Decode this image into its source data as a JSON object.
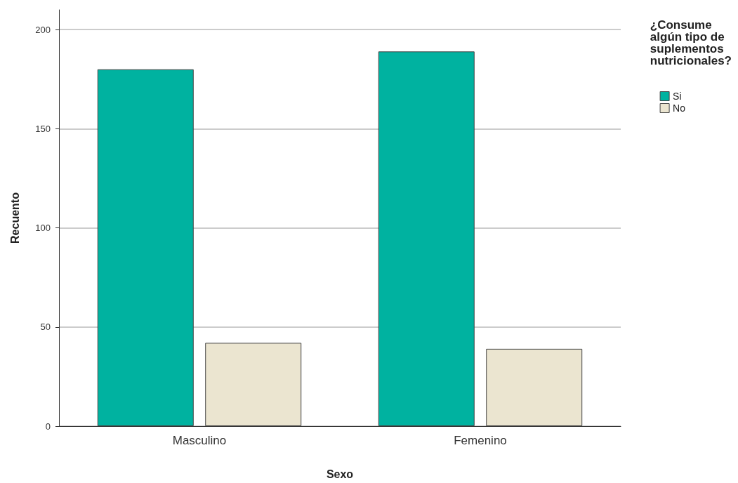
{
  "chart_data": {
    "type": "bar",
    "xlabel": "Sexo",
    "ylabel": "Recuento",
    "legend_title": "¿Consume\nalgún tipo de\nsuplementos\nnutricionales?",
    "categories": [
      "Masculino",
      "Femenino"
    ],
    "series": [
      {
        "name": "Si",
        "color": "#00b2a0",
        "values": [
          180,
          189
        ]
      },
      {
        "name": "No",
        "color": "#ebe5d0",
        "values": [
          42,
          39
        ]
      }
    ],
    "ylim": [
      0,
      210
    ],
    "yticks": [
      0,
      50,
      100,
      150,
      200
    ],
    "grid": "y",
    "legend": "top right"
  }
}
